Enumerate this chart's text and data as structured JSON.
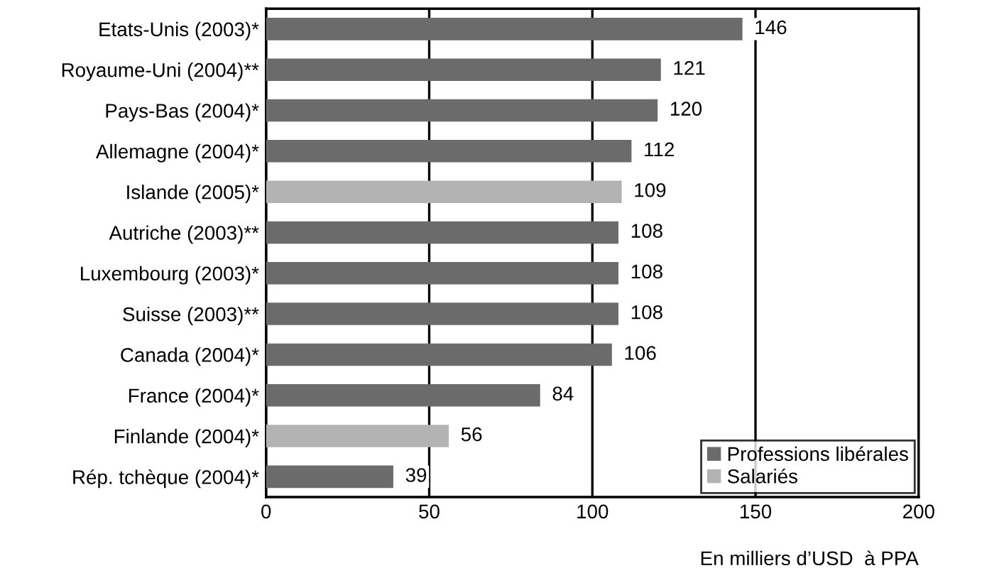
{
  "chart_data": {
    "type": "bar",
    "orientation": "horizontal",
    "categories": [
      "Etats-Unis (2003)*",
      "Royaume-Uni (2004)**",
      "Pays-Bas (2004)*",
      "Allemagne (2004)*",
      "Islande (2005)*",
      "Autriche (2003)**",
      "Luxembourg (2003)*",
      "Suisse (2003)**",
      "Canada (2004)*",
      "France (2004)*",
      "Finlande (2004)*",
      "Rép. tchèque (2004)*"
    ],
    "series": [
      {
        "name": "Professions libérales",
        "color": "#6b6b6b",
        "values": [
          146,
          121,
          120,
          112,
          null,
          108,
          108,
          108,
          106,
          84,
          null,
          39
        ]
      },
      {
        "name": "Salariés",
        "color": "#b3b3b3",
        "values": [
          null,
          null,
          null,
          null,
          109,
          null,
          null,
          null,
          null,
          null,
          56,
          null
        ]
      }
    ],
    "xlim": [
      0,
      200
    ],
    "xticks": [
      0,
      50,
      100,
      150,
      200
    ],
    "xlabel": "En milliers d’USD  à PPA",
    "grid": "x",
    "legend": "bottom right",
    "data_labels": true
  }
}
